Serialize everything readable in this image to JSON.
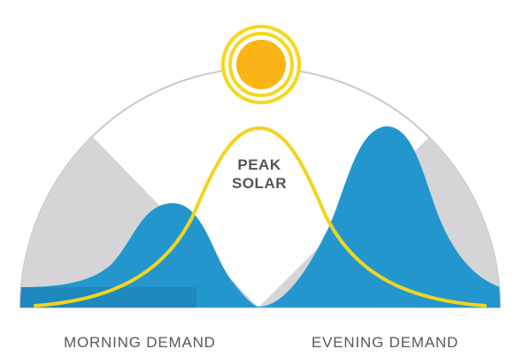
{
  "labels": {
    "peak_line1": "PEAK",
    "peak_line2": "SOLAR",
    "morning": "MORNING DEMAND",
    "evening": "EVENING DEMAND"
  },
  "icons": {
    "sun": "sun-icon"
  },
  "colors": {
    "sky_dome": "#ffffff",
    "dome_outline": "#c9c9c9",
    "night_gray": "#d5d5d7",
    "demand_light": "#29a8e0",
    "demand_dark": "#1f88bd",
    "solar_curve": "#f3d41e",
    "sun_core": "#fbb415",
    "sun_ring": "#f6d71c",
    "label_text": "#58595b",
    "peak_text": "#555555"
  }
}
